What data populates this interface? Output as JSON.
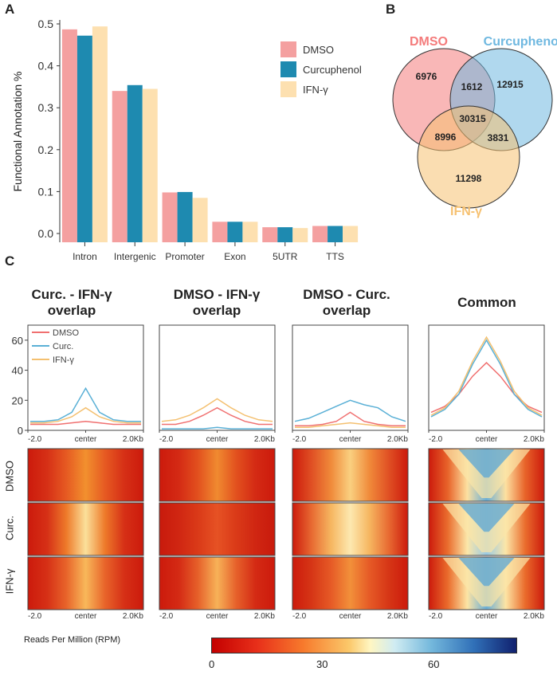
{
  "panels": {
    "a": "A",
    "b": "B",
    "c": "C"
  },
  "chart_data": [
    {
      "type": "bar",
      "categories": [
        "Intron",
        "Intergenic",
        "Promoter",
        "Exon",
        "5UTR",
        "TTS"
      ],
      "series": [
        {
          "name": "DMSO",
          "color": "#f4a0a0",
          "values": [
            0.487,
            0.34,
            0.098,
            0.028,
            0.015,
            0.018
          ]
        },
        {
          "name": "Curcuphenol",
          "color": "#1e8ab0",
          "values": [
            0.472,
            0.354,
            0.099,
            0.028,
            0.015,
            0.018
          ]
        },
        {
          "name": "IFN-γ",
          "color": "#fde0b0",
          "values": [
            0.494,
            0.345,
            0.085,
            0.028,
            0.013,
            0.018
          ]
        }
      ],
      "ylabel": "Functional Annotation %",
      "yticks": [
        "0.0",
        "0.1",
        "0.2",
        "0.3",
        "0.4",
        "0.5"
      ],
      "ylim": [
        0,
        0.5
      ],
      "legend": "top-right"
    },
    {
      "type": "line",
      "profiles": [
        {
          "title": "Curc. - IFN-γ overlap",
          "series": {
            "DMSO": [
              4,
              4,
              4,
              5,
              6,
              5,
              4,
              4,
              4
            ],
            "Curc.": [
              6,
              6,
              7,
              12,
              28,
              12,
              7,
              6,
              6
            ],
            "IFN-γ": [
              5,
              5,
              6,
              9,
              15,
              9,
              6,
              5,
              5
            ]
          }
        },
        {
          "title": "DMSO - IFN-γ overlap",
          "series": {
            "DMSO": [
              4,
              4,
              6,
              10,
              15,
              10,
              6,
              4,
              4
            ],
            "Curc.": [
              1,
              1,
              1,
              1,
              2,
              1,
              1,
              1,
              1
            ],
            "IFN-γ": [
              6,
              7,
              10,
              15,
              21,
              15,
              10,
              7,
              6
            ]
          }
        },
        {
          "title": "DMSO - Curc. overlap",
          "series": {
            "DMSO": [
              3,
              3,
              4,
              6,
              12,
              6,
              4,
              3,
              3
            ],
            "Curc.": [
              6,
              8,
              12,
              16,
              20,
              17,
              15,
              9,
              6
            ],
            "IFN-γ": [
              2,
              2,
              3,
              4,
              5,
              4,
              3,
              2,
              2
            ]
          }
        },
        {
          "title": "Common",
          "series": {
            "DMSO": [
              12,
              16,
              24,
              36,
              45,
              36,
              24,
              16,
              12
            ],
            "Curc.": [
              9,
              14,
              24,
              44,
              60,
              44,
              24,
              14,
              9
            ],
            "IFN-γ": [
              10,
              15,
              26,
              46,
              62,
              46,
              26,
              15,
              10
            ]
          }
        }
      ],
      "legend": [
        "DMSO",
        "Curc.",
        "IFN-γ"
      ],
      "legend_colors": [
        "#f07070",
        "#5ab0d6",
        "#f4c070"
      ],
      "yticks": [
        "0",
        "20",
        "40",
        "60"
      ],
      "ylim": [
        0,
        70
      ],
      "xticks": [
        "-2.0",
        "center",
        "2.0Kb"
      ]
    }
  ],
  "venn": {
    "labels": [
      "DMSO",
      "Curcuphenol",
      "IFN-γ"
    ],
    "colors": [
      "#f47b7b",
      "#6fb8e0",
      "#f6c171"
    ],
    "counts": {
      "dmso_only": "6976",
      "curc_only": "12915",
      "ifng_only": "11298",
      "dmso_curc": "1612",
      "dmso_ifng": "8996",
      "curc_ifng": "3831",
      "all": "30315"
    }
  },
  "heatmaps": {
    "rows": [
      "DMSO",
      "Curc.",
      "IFN-γ"
    ],
    "xticks": [
      "-2.0",
      "center",
      "2.0Kb"
    ]
  },
  "colorbar": {
    "label": "Reads Per Million (RPM)",
    "ticks": [
      "0",
      "30",
      "60"
    ]
  }
}
